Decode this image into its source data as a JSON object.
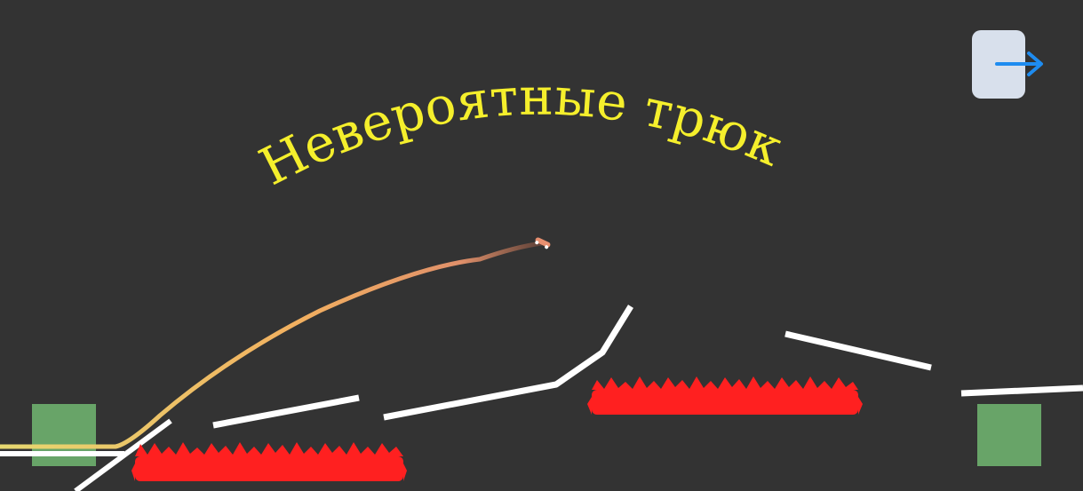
{
  "game": {
    "title": "Невероятные трюки",
    "next_button_icon": "arrow-right-icon",
    "colors": {
      "background": "#333333",
      "title": "#f5ef2c",
      "track": "#ffffff",
      "spikes": "#ff2020",
      "zone": "#72b872",
      "trail_start": "#e6d870",
      "trail_end": "#6e4a3a",
      "button_bg": "#d8e0ec",
      "arrow": "#1e8cf0"
    }
  }
}
